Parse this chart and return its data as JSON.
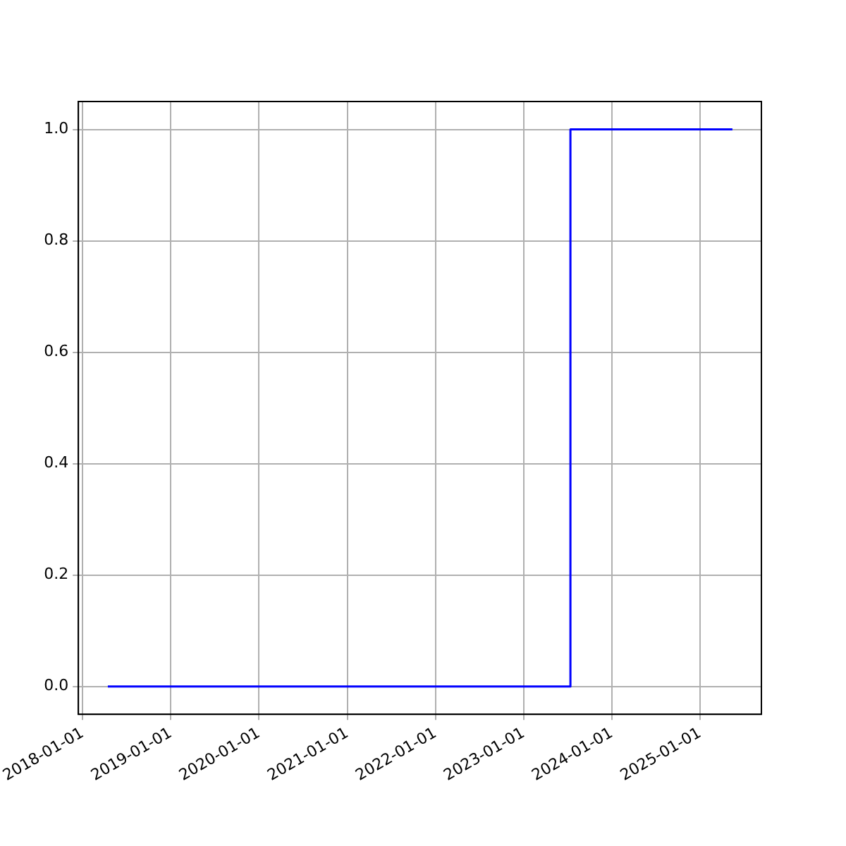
{
  "chart_data": {
    "type": "step",
    "x": [
      "2018-04-15",
      "2023-07-14",
      "2025-05-15"
    ],
    "series": [
      {
        "color": "#0000ff",
        "values": [
          0,
          1,
          1
        ]
      }
    ],
    "xlim": [
      "2017-12-14",
      "2025-09-12"
    ],
    "xticks": [
      "2018-01-01",
      "2019-01-01",
      "2020-01-01",
      "2021-01-01",
      "2022-01-01",
      "2023-01-01",
      "2024-01-01",
      "2025-01-01"
    ],
    "ylim": [
      -0.05,
      1.05
    ],
    "yticks": [
      {
        "value": 0,
        "label": "0.0"
      },
      {
        "value": 0.2,
        "label": "0.2"
      },
      {
        "value": 0.4,
        "label": "0.4"
      },
      {
        "value": 0.6,
        "label": "0.6"
      },
      {
        "value": 0.8,
        "label": "0.8"
      },
      {
        "value": 1,
        "label": "1.0"
      }
    ],
    "grid": true,
    "legend": false
  }
}
